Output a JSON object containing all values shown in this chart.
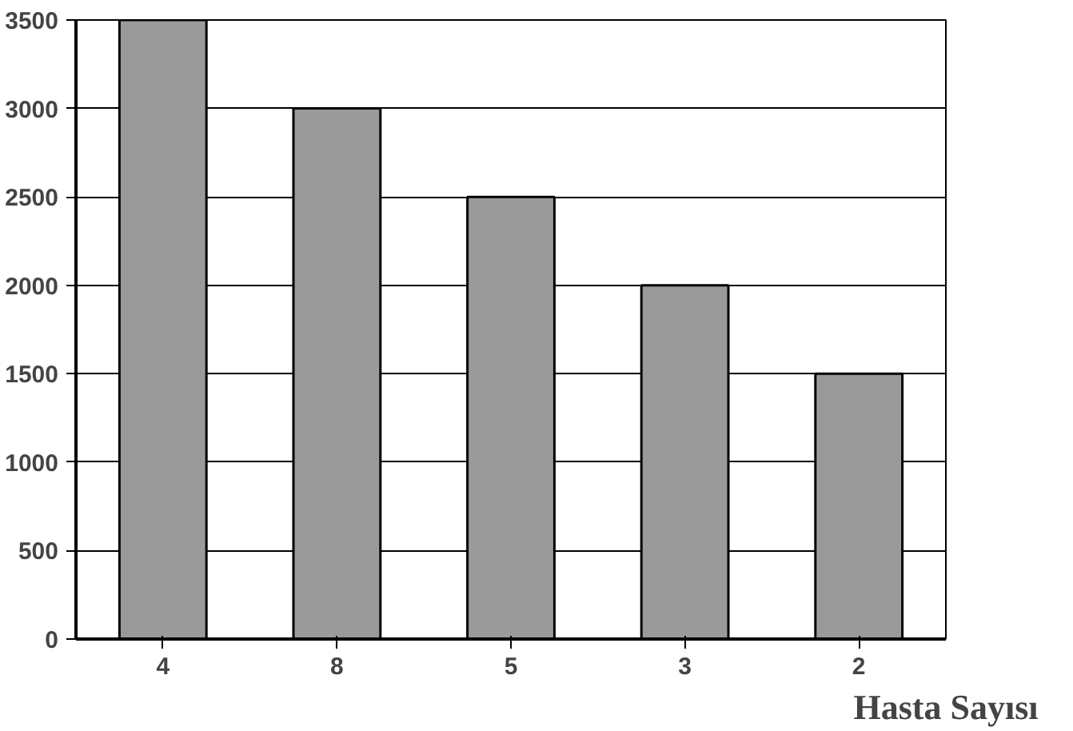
{
  "chart_data": {
    "type": "bar",
    "categories": [
      "4",
      "8",
      "5",
      "3",
      "2"
    ],
    "values": [
      3500,
      3000,
      2500,
      2000,
      1500
    ],
    "color": "#9a9a9a",
    "xlabel": "Hasta Sayısı",
    "ylim": [
      0,
      3500
    ],
    "yticks": [
      0,
      500,
      1000,
      1500,
      2000,
      2500,
      3000,
      3500
    ],
    "grid": "y"
  }
}
